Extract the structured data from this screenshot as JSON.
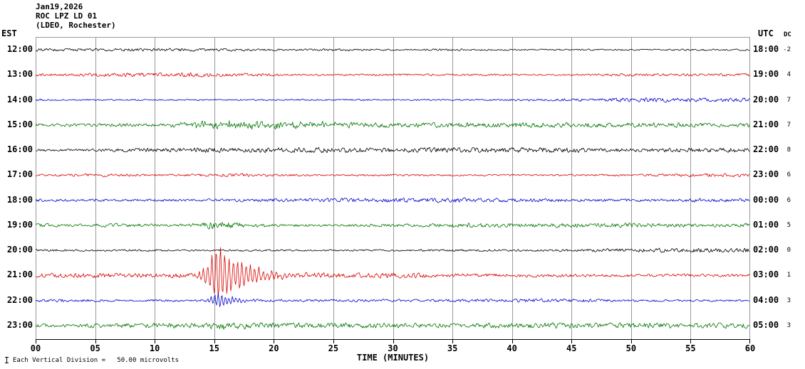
{
  "header": {
    "date": "Jan19,2026",
    "station": "ROC LPZ LD 01",
    "location": "(LDEO, Rochester)"
  },
  "axes": {
    "left_label": "EST",
    "right_label": "UTC",
    "dc_label": "DC",
    "x_title": "TIME (MINUTES)",
    "x_ticks": [
      "00",
      "05",
      "10",
      "15",
      "20",
      "25",
      "30",
      "35",
      "40",
      "45",
      "50",
      "55",
      "60"
    ]
  },
  "footer": {
    "scale_note": "Each Vertical Division =   50.00 microvolts"
  },
  "chart_data": {
    "type": "line",
    "title": "ROC LPZ LD 01 helicorder (LDEO, Rochester) Jan19,2026",
    "x_axis": {
      "title": "TIME (MINUTES)",
      "range_minutes": [
        0,
        60
      ],
      "tick_interval_minutes": 5
    },
    "grid": "vertical lines every 5 minutes",
    "scale": "50.00 microvolts per vertical division",
    "rows": [
      {
        "est": "12:00",
        "utc": "18:00",
        "color": "#000000",
        "dc": "-2",
        "noise": 2.4,
        "events": []
      },
      {
        "est": "13:00",
        "utc": "19:00",
        "color": "#dd0000",
        "dc": "4",
        "noise": 2.6,
        "events": []
      },
      {
        "est": "14:00",
        "utc": "20:00",
        "color": "#0000cc",
        "dc": "7",
        "noise": 2.4,
        "events": []
      },
      {
        "est": "15:00",
        "utc": "21:00",
        "color": "#007700",
        "dc": "7",
        "noise": 3.1,
        "events": [
          {
            "start": 7,
            "peak": 16,
            "end": 35,
            "amp": 4.5,
            "decay": 8,
            "mode": "noise"
          }
        ]
      },
      {
        "est": "16:00",
        "utc": "22:00",
        "color": "#000000",
        "dc": "8",
        "noise": 2.7,
        "events": []
      },
      {
        "est": "17:00",
        "utc": "23:00",
        "color": "#dd0000",
        "dc": "6",
        "noise": 2.8,
        "events": []
      },
      {
        "est": "18:00",
        "utc": "00:00",
        "color": "#0000cc",
        "dc": "6",
        "noise": 2.4,
        "events": []
      },
      {
        "est": "19:00",
        "utc": "01:00",
        "color": "#007700",
        "dc": "5",
        "noise": 3.0,
        "events": [
          {
            "start": 12,
            "peak": 14.8,
            "end": 23,
            "amp": 5,
            "decay": 3,
            "mode": "noise"
          }
        ]
      },
      {
        "est": "20:00",
        "utc": "02:00",
        "color": "#000000",
        "dc": "0",
        "noise": 2.5,
        "events": []
      },
      {
        "est": "21:00",
        "utc": "03:00",
        "color": "#dd0000",
        "dc": "1",
        "noise": 2.8,
        "events": [
          {
            "start": 13.1,
            "peak": 15.4,
            "end": 24,
            "amp": 46,
            "decay": 2.2,
            "mode": "osc",
            "period": 6
          }
        ]
      },
      {
        "est": "22:00",
        "utc": "04:00",
        "color": "#0000cc",
        "dc": "3",
        "noise": 2.4,
        "events": [
          {
            "start": 14.0,
            "peak": 15.2,
            "end": 20,
            "amp": 13,
            "decay": 1.4,
            "mode": "osc",
            "period": 5
          }
        ]
      },
      {
        "est": "23:00",
        "utc": "05:00",
        "color": "#007700",
        "dc": "3",
        "noise": 3.0,
        "events": [
          {
            "start": 14.0,
            "peak": 15.5,
            "end": 19,
            "amp": 4.5,
            "decay": 1.2,
            "mode": "noise"
          }
        ]
      }
    ]
  }
}
